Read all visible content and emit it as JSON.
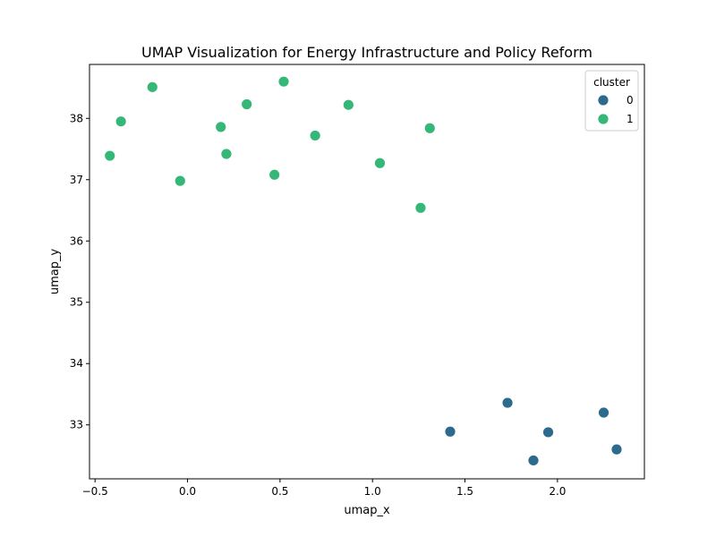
{
  "chart_data": {
    "type": "scatter",
    "title": "UMAP Visualization for Energy Infrastructure and Policy Reform",
    "xlabel": "umap_x",
    "ylabel": "umap_y",
    "xlim": [
      -0.53,
      2.47
    ],
    "ylim": [
      32.12,
      38.88
    ],
    "xticks": [
      -0.5,
      0.0,
      0.5,
      1.0,
      1.5,
      2.0
    ],
    "xtick_labels": [
      "−0.5",
      "0.0",
      "0.5",
      "1.0",
      "1.5",
      "2.0"
    ],
    "yticks": [
      33,
      34,
      35,
      36,
      37,
      38
    ],
    "ytick_labels": [
      "33",
      "34",
      "35",
      "36",
      "37",
      "38"
    ],
    "grid": false,
    "legend": {
      "title": "cluster",
      "placement": "top-right",
      "entries": [
        {
          "label": "0",
          "color": "#2c6b8e"
        },
        {
          "label": "1",
          "color": "#35b877"
        }
      ]
    },
    "series": [
      {
        "name": "0",
        "color": "#2c6b8e",
        "points": [
          {
            "x": 1.42,
            "y": 32.89
          },
          {
            "x": 1.73,
            "y": 33.36
          },
          {
            "x": 1.87,
            "y": 32.42
          },
          {
            "x": 1.95,
            "y": 32.88
          },
          {
            "x": 2.25,
            "y": 33.2
          },
          {
            "x": 2.32,
            "y": 32.6
          }
        ]
      },
      {
        "name": "1",
        "color": "#35b877",
        "points": [
          {
            "x": -0.42,
            "y": 37.39
          },
          {
            "x": -0.36,
            "y": 37.95
          },
          {
            "x": -0.19,
            "y": 38.51
          },
          {
            "x": -0.04,
            "y": 36.98
          },
          {
            "x": 0.18,
            "y": 37.86
          },
          {
            "x": 0.21,
            "y": 37.42
          },
          {
            "x": 0.32,
            "y": 38.23
          },
          {
            "x": 0.47,
            "y": 37.08
          },
          {
            "x": 0.52,
            "y": 38.6
          },
          {
            "x": 0.69,
            "y": 37.72
          },
          {
            "x": 0.87,
            "y": 38.22
          },
          {
            "x": 1.04,
            "y": 37.27
          },
          {
            "x": 1.26,
            "y": 36.54
          },
          {
            "x": 1.31,
            "y": 37.84
          }
        ]
      }
    ]
  }
}
